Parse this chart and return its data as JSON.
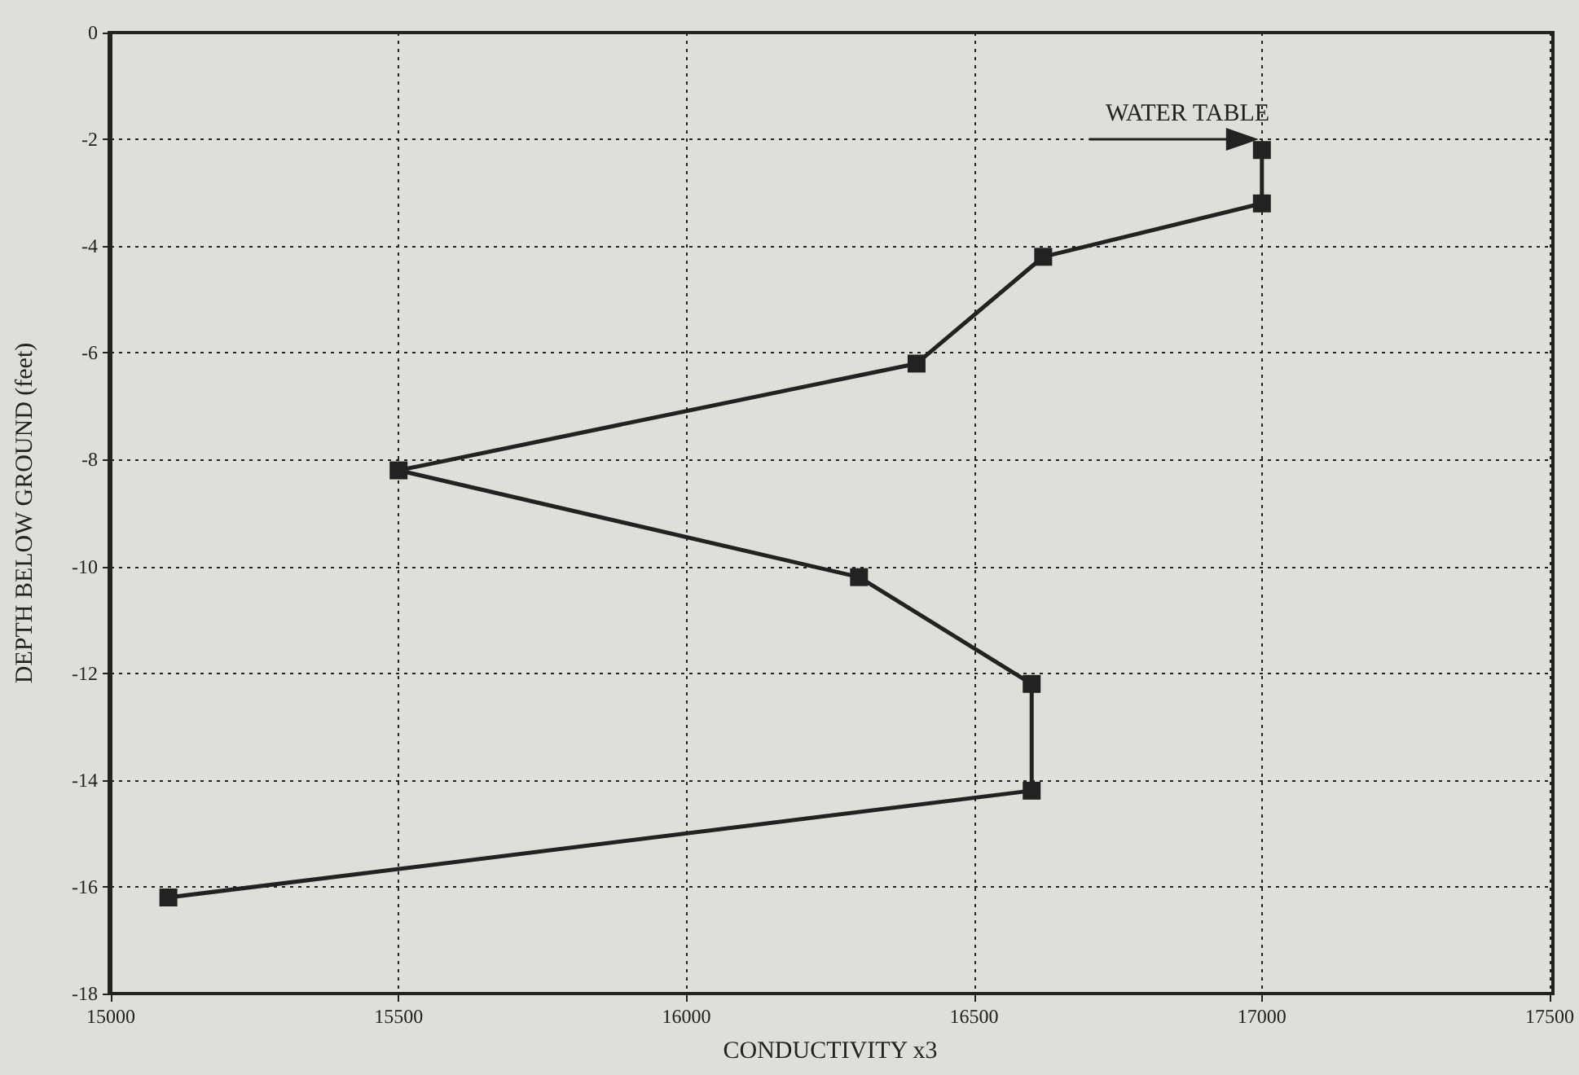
{
  "chart_data": {
    "type": "line",
    "xlabel": "CONDUCTIVITY x3",
    "ylabel": "DEPTH BELOW GROUND (feet)",
    "x": [
      17000,
      17000,
      16620,
      16400,
      15500,
      16300,
      16600,
      16600,
      15100
    ],
    "series": [
      {
        "color": "#222222",
        "values": [
          -2.2,
          -3.2,
          -4.2,
          -6.2,
          -8.2,
          -10.2,
          -12.2,
          -14.2,
          -16.2
        ]
      }
    ],
    "xlim": [
      15000,
      17500
    ],
    "xticks": [
      15000,
      15500,
      16000,
      16500,
      17000,
      17500
    ],
    "ylim": [
      -18,
      0
    ],
    "yticks": [
      -18,
      -16,
      -14,
      -12,
      -10,
      -8,
      -6,
      -4,
      -2,
      0
    ],
    "annotations": [
      {
        "text": "WATER TABLE",
        "x": 17000,
        "y": -2
      }
    ],
    "grid": true,
    "marker": "square",
    "line_style": "solid"
  }
}
